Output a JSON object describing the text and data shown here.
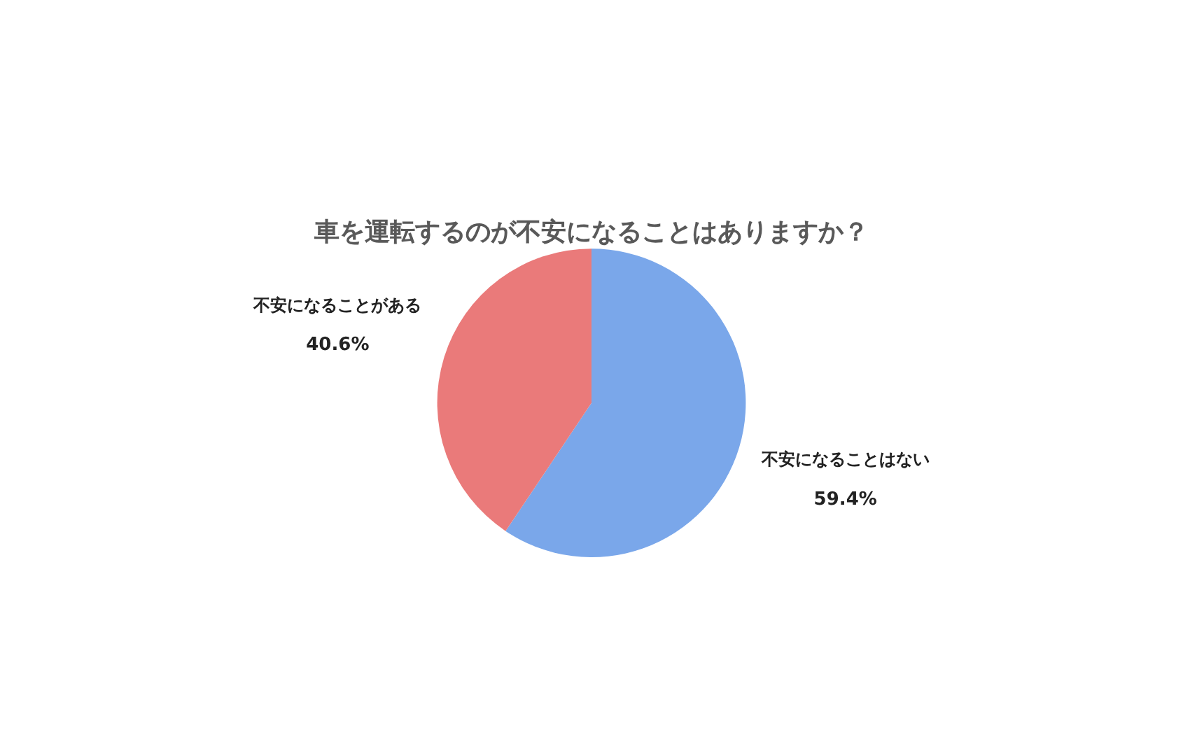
{
  "chart_data": {
    "type": "pie",
    "title": "車を運転するのが不安になることはありますか？",
    "categories": [
      "不安になることはない",
      "不安になることがある"
    ],
    "values": [
      59.4,
      40.6
    ],
    "value_labels": [
      "59.4%",
      "40.6%"
    ],
    "colors": [
      "#7aa7ea",
      "#ea7a7a"
    ],
    "legend": false
  }
}
